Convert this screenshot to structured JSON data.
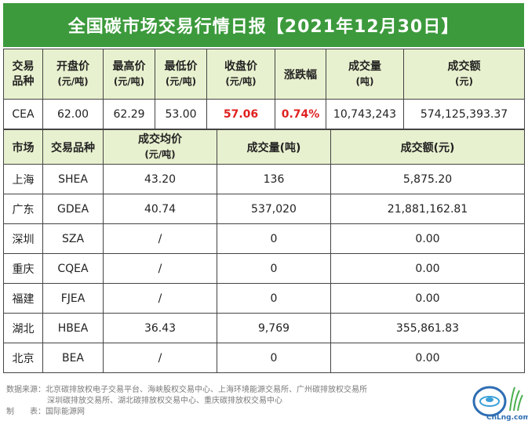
{
  "title": "全国碳市场交易行情日报【2021年12月30日】",
  "cea_table": {
    "headers": [
      {
        "line1": "交易",
        "line2": "品种"
      },
      {
        "line1": "开盘价",
        "line2": "(元/吨)"
      },
      {
        "line1": "最高价",
        "line2": "(元/吨)"
      },
      {
        "line1": "最低价",
        "line2": "(元/吨)"
      },
      {
        "line1": "收盘价",
        "line2": "(元/吨)"
      },
      {
        "line1": "涨跌幅",
        "line2": ""
      },
      {
        "line1": "成交量",
        "line2": "(吨)"
      },
      {
        "line1": "成交额",
        "line2": "(元)"
      }
    ],
    "row": {
      "product": "CEA",
      "open": "62.00",
      "high": "62.29",
      "low": "53.00",
      "close": "57.06",
      "change": "0.74%",
      "volume": "10,743,243",
      "turnover": "574,125,393.37"
    }
  },
  "regional_table": {
    "headers": {
      "market": "市场",
      "product": "交易品种",
      "avg_price": "成交均价",
      "avg_price_unit": "(元/吨)",
      "volume": "成交量(吨)",
      "turnover": "成交额(元)"
    },
    "rows": [
      {
        "market": "上海",
        "product": "SHEA",
        "avg_price": "43.20",
        "volume": "136",
        "turnover": "5,875.20"
      },
      {
        "market": "广东",
        "product": "GDEA",
        "avg_price": "40.74",
        "volume": "537,020",
        "turnover": "21,881,162.81"
      },
      {
        "market": "深圳",
        "product": "SZA",
        "avg_price": "/",
        "volume": "0",
        "turnover": "0.00"
      },
      {
        "market": "重庆",
        "product": "CQEA",
        "avg_price": "/",
        "volume": "0",
        "turnover": "0.00"
      },
      {
        "market": "福建",
        "product": "FJEA",
        "avg_price": "/",
        "volume": "0",
        "turnover": "0.00"
      },
      {
        "market": "湖北",
        "product": "HBEA",
        "avg_price": "36.43",
        "volume": "9,769",
        "turnover": "355,861.83"
      },
      {
        "market": "北京",
        "product": "BEA",
        "avg_price": "/",
        "volume": "0",
        "turnover": "0.00"
      }
    ]
  },
  "footer": {
    "source_line1": "数据来源：北京碳排放权电子交易平台、海峡股权交易中心、上海环境能源交易所、广州碳排放权交易所",
    "source_line2": "深圳碳排放交易所、湖北碳排放权交易中心、重庆碳排放权交易中心",
    "maker": "制　　表：国际能源网"
  },
  "logo": {
    "text": "CnLng.com",
    "icon": "globe-logo-icon"
  },
  "colors": {
    "title_bg": "#3c9a3c",
    "header_bg": "#e8f1cf",
    "highlight": "#e02020"
  }
}
